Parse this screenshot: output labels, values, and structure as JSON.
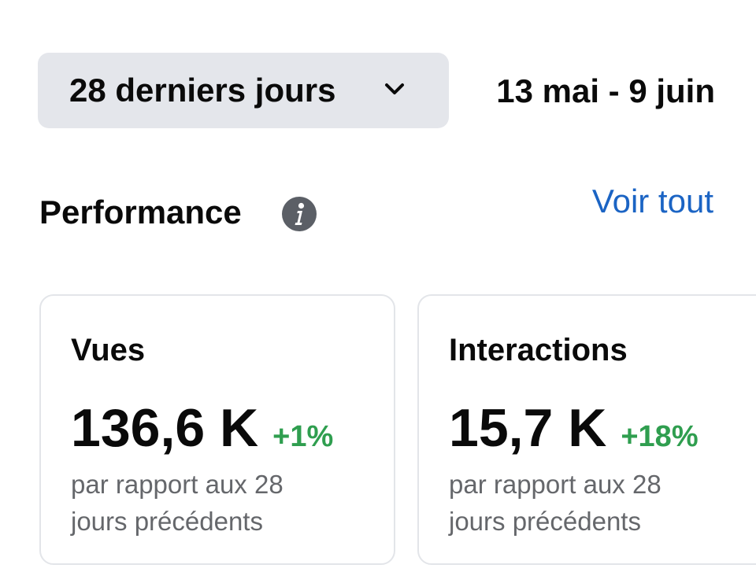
{
  "filter": {
    "range_label": "28 derniers jours",
    "date_range": "13 mai - 9 juin"
  },
  "performance": {
    "title": "Performance",
    "see_all": "Voir tout"
  },
  "cards": [
    {
      "title": "Vues",
      "value": "136,6 K",
      "change": "+1%",
      "subtext": "par rapport aux 28 jours précédents"
    },
    {
      "title": "Interactions",
      "value": "15,7 K",
      "change": "+18%",
      "subtext": "par rapport aux 28 jours précédents"
    }
  ],
  "colors": {
    "positive_change": "#2f9e4f",
    "link": "#1b64c4",
    "button_bg": "#e4e6eb"
  },
  "icons": {
    "dropdown": "chevron-down-icon",
    "info": "info-icon"
  }
}
